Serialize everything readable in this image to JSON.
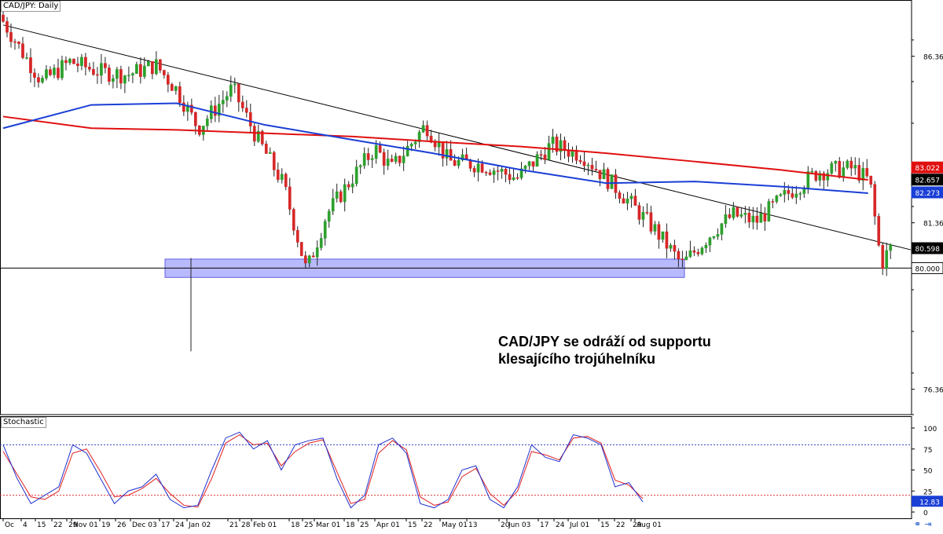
{
  "chart_data": {
    "type": "candlestick",
    "title": "CAD/JPY: Daily",
    "annotation": [
      "CAD/JPY se odráží od supportu",
      "klesajícího trojúhelníku"
    ],
    "price_axis": {
      "ticks": [
        "86.361",
        "81.361",
        "76.361"
      ],
      "tick_values": [
        86.361,
        81.361,
        76.361
      ],
      "ylim": [
        75.6,
        88.05
      ]
    },
    "price_badges": [
      {
        "text": "83.022",
        "value": 83.022,
        "color": "#e01010"
      },
      {
        "text": "82.657",
        "value": 82.657,
        "color": "#000000"
      },
      {
        "text": "82.273",
        "value": 82.273,
        "color": "#1a3fd6"
      },
      {
        "text": "80.598",
        "value": 80.598,
        "color": "#000000"
      },
      {
        "text": "80.000",
        "value": 80.0,
        "color": "#ffffff"
      }
    ],
    "x_axis_labels": [
      "Oc",
      "4",
      "15",
      "22",
      "29",
      "Nov 01",
      "19",
      "26",
      "Dec 03",
      "17",
      "24",
      "Jan 02",
      "21",
      "28",
      "Feb 01",
      "18",
      "25",
      "Mar 01",
      "18",
      "25",
      "Apr 01",
      "15",
      "22",
      "May 01",
      "13",
      "20",
      "Jun 03",
      "17",
      "24",
      "Jul 01",
      "15",
      "22",
      "29",
      "Aug 01"
    ],
    "trendline": {
      "x": [
        "Oct 01",
        "Aug 16"
      ],
      "y": [
        87.3,
        80.55
      ]
    },
    "support": {
      "value": 80.0,
      "zone": [
        79.72,
        80.27
      ]
    },
    "series": [
      {
        "name": "MA red",
        "color": "#e01010",
        "x": [
          "Oct 01",
          "Nov 01",
          "Dec 01",
          "Jan 01",
          "Feb 01",
          "Mar 01",
          "Apr 01",
          "May 01",
          "Jun 01",
          "Jul 01",
          "Aug 01"
        ],
        "values": [
          84.55,
          84.2,
          84.15,
          84.05,
          83.95,
          83.8,
          83.65,
          83.45,
          83.2,
          82.95,
          82.65
        ]
      },
      {
        "name": "MA blue",
        "color": "#1a3fd6",
        "x": [
          "Oct 01",
          "Nov 01",
          "Dec 01",
          "Jan 01",
          "Feb 01",
          "Mar 01",
          "Apr 01",
          "May 01",
          "Jun 01",
          "Jul 01",
          "Aug 01"
        ],
        "values": [
          84.2,
          84.9,
          84.95,
          84.3,
          83.85,
          83.45,
          82.95,
          82.55,
          82.6,
          82.45,
          82.25
        ]
      }
    ],
    "stochastic": {
      "label": "Stochastic",
      "ticks": [
        "100",
        "75",
        "50",
        "25",
        "0"
      ],
      "tick_values": [
        100,
        75,
        50,
        25,
        0
      ],
      "levels": [
        80,
        20
      ],
      "current_badge": "12.83",
      "current": 12.83,
      "k_values": [
        80,
        40,
        10,
        20,
        30,
        80,
        70,
        40,
        10,
        25,
        30,
        45,
        15,
        5,
        8,
        50,
        88,
        95,
        75,
        85,
        50,
        80,
        85,
        88,
        40,
        5,
        20,
        80,
        88,
        70,
        10,
        5,
        15,
        50,
        55,
        15,
        5,
        30,
        80,
        65,
        60,
        92,
        88,
        80,
        30,
        35,
        12
      ],
      "d_values": [
        72,
        45,
        18,
        15,
        25,
        70,
        75,
        48,
        18,
        20,
        28,
        40,
        22,
        8,
        6,
        40,
        82,
        92,
        80,
        82,
        55,
        72,
        82,
        86,
        48,
        10,
        15,
        70,
        85,
        74,
        18,
        8,
        12,
        42,
        52,
        22,
        8,
        25,
        72,
        68,
        62,
        88,
        90,
        82,
        38,
        32,
        16
      ]
    },
    "colors": {
      "up": "#2ca02c",
      "down": "#d62728",
      "zone": "#8080ff",
      "grid": "#e6e6e6"
    }
  },
  "toolbar": {
    "icons": [
      "chain-link-icon",
      "arrow-right-icon"
    ]
  }
}
